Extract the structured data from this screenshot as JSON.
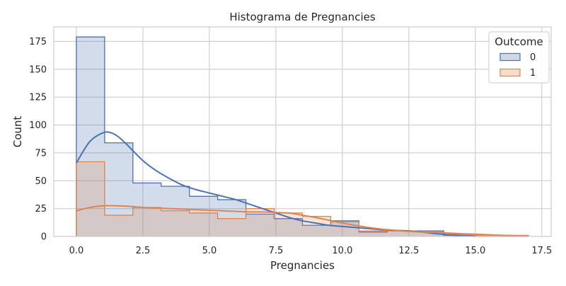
{
  "chart_data": {
    "type": "histogram",
    "title": "Histograma de Pregnancies",
    "xlabel": "Pregnancies",
    "ylabel": "Count",
    "xlim": [
      -0.85,
      17.85
    ],
    "ylim": [
      0,
      188
    ],
    "xticks": [
      0,
      2.5,
      5,
      7.5,
      10,
      12.5,
      15,
      17.5
    ],
    "xtick_labels": [
      "0.0",
      "2.5",
      "5.0",
      "7.5",
      "10.0",
      "12.5",
      "15.0",
      "17.5"
    ],
    "yticks": [
      0,
      25,
      50,
      75,
      100,
      125,
      150,
      175
    ],
    "ytick_labels": [
      "0",
      "25",
      "50",
      "75",
      "100",
      "125",
      "150",
      "175"
    ],
    "grid": true,
    "bins": [
      0,
      1.0625,
      2.125,
      3.1875,
      4.25,
      5.3125,
      6.375,
      7.4375,
      8.5,
      9.5625,
      10.625,
      11.6875,
      12.75,
      13.8125,
      14.875,
      15.9375,
      17
    ],
    "legend": {
      "title": "Outcome",
      "placement": "top-right"
    },
    "series": [
      {
        "name": "0",
        "color": "#4c72b0",
        "fill": "#cfd8ea",
        "counts": [
          179,
          84,
          48,
          45,
          36,
          33,
          20,
          16,
          10,
          14,
          4,
          5,
          5,
          1,
          0,
          0
        ],
        "kde": {
          "x": [
            0,
            0.5,
            1.0,
            1.3,
            1.6,
            2.0,
            2.5,
            3.0,
            3.5,
            4.0,
            4.5,
            5.0,
            5.5,
            6.0,
            6.5,
            7.0,
            7.5,
            8.0,
            8.5,
            9.0,
            9.5,
            10.0,
            10.5,
            11.0,
            11.5,
            12.0,
            12.5,
            13.0,
            13.5,
            14.0,
            14.5,
            15.0
          ],
          "y": [
            66,
            85,
            93,
            93,
            89,
            80,
            68,
            59,
            52,
            46,
            42,
            39,
            36,
            33,
            29,
            25,
            21,
            17,
            14,
            12,
            10,
            9,
            8,
            7,
            6,
            5.5,
            5,
            4,
            2.5,
            1.5,
            0.7,
            0.2
          ]
        }
      },
      {
        "name": "1",
        "color": "#dd8452",
        "fill": "#f9dcc9",
        "counts": [
          67,
          19,
          26,
          23,
          21,
          16,
          25,
          21,
          18,
          13,
          5,
          5,
          4,
          2,
          1,
          1
        ],
        "kde": {
          "x": [
            0,
            0.5,
            1.0,
            1.5,
            2.0,
            2.5,
            3.0,
            3.5,
            4.0,
            4.5,
            5.0,
            5.5,
            6.0,
            6.5,
            7.0,
            7.5,
            8.0,
            8.5,
            9.0,
            9.5,
            10.0,
            10.5,
            11.0,
            11.5,
            12.0,
            12.5,
            13.0,
            13.5,
            14.0,
            14.5,
            15.0,
            15.5,
            16.0,
            16.5,
            17.0
          ],
          "y": [
            23,
            26,
            27.5,
            27.5,
            27,
            26,
            25.5,
            25,
            24.5,
            24,
            23.5,
            23,
            22.5,
            22,
            22,
            21.5,
            21,
            19,
            17,
            14.5,
            12,
            10,
            8,
            6.5,
            5.5,
            4.5,
            4,
            3.5,
            3,
            2.5,
            2,
            1.5,
            1,
            0.7,
            0.4
          ]
        }
      }
    ]
  }
}
